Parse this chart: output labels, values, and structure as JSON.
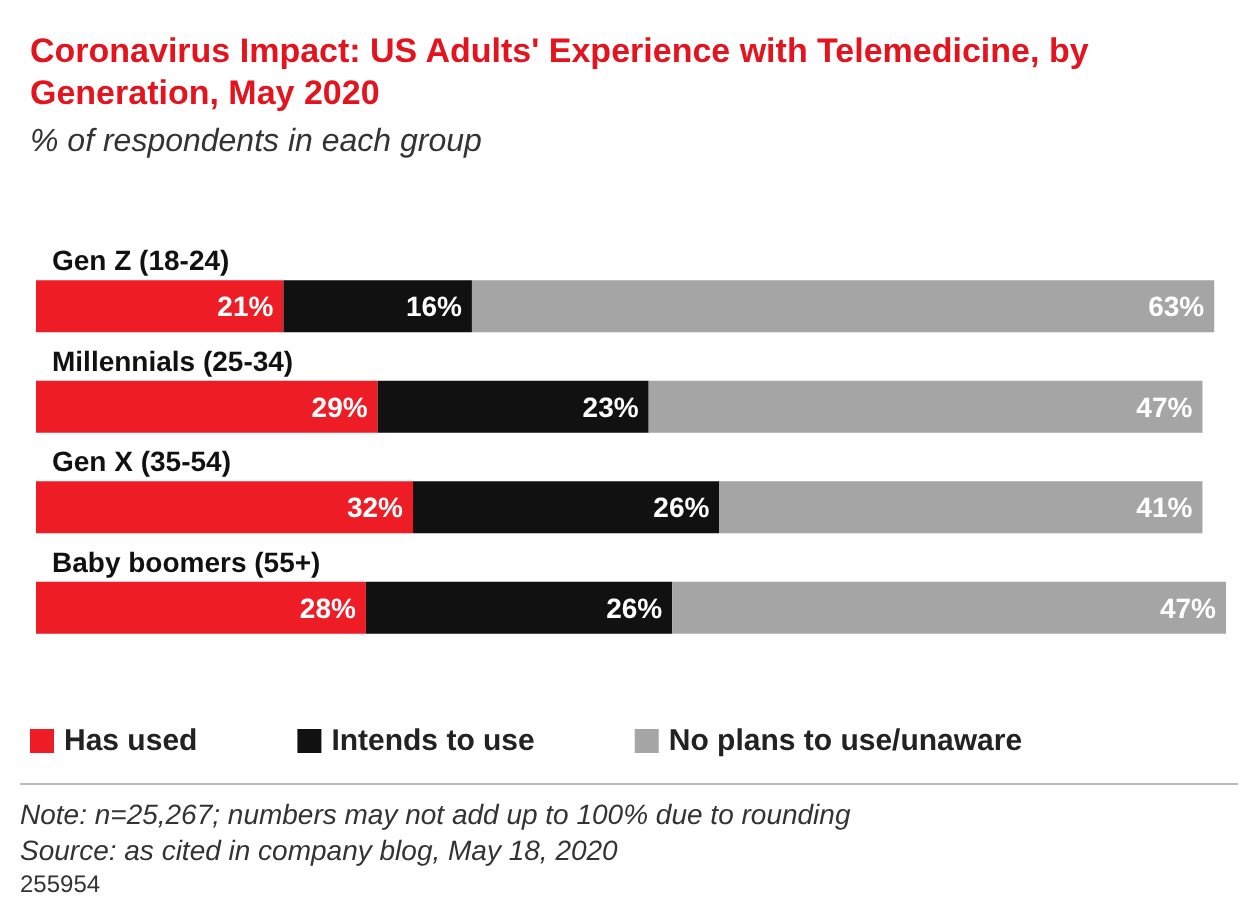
{
  "chart_data": {
    "type": "bar",
    "orientation": "horizontal",
    "stacked": true,
    "legend": "bottom left",
    "title": "Coronavirus Impact: US Adults' Experience with Telemedicine, by Generation, May 2020",
    "subtitle": "% of respondents in each group",
    "categories": [
      "Gen Z (18-24)",
      "Millennials (25-34)",
      "Gen X (35-54)",
      "Baby boomers (55+)"
    ],
    "series": [
      {
        "name": "Has used",
        "color": "#ee1c25",
        "values": [
          21,
          29,
          32,
          28
        ],
        "value_labels": [
          "21%",
          "29%",
          "32%",
          "28%"
        ]
      },
      {
        "name": "Intends to use",
        "color": "#111111",
        "values": [
          16,
          23,
          26,
          26
        ],
        "value_labels": [
          "16%",
          "23%",
          "26%",
          "26%"
        ]
      },
      {
        "name": "No plans to use/unaware",
        "color": "#a5a5a5",
        "values": [
          63,
          47,
          41,
          47
        ],
        "value_labels": [
          "63%",
          "47%",
          "41%",
          "47%"
        ]
      }
    ],
    "annotations": [
      "Note: n=25,267; numbers may not add up to 100% due to rounding",
      "Source: as cited in company blog, May 18, 2020",
      "255954"
    ]
  }
}
